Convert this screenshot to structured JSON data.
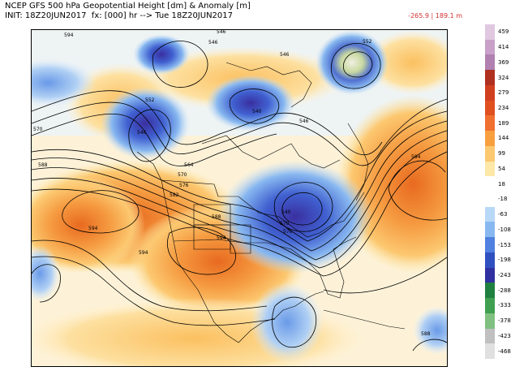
{
  "header": {
    "title": "NCEP GFS 500 hPa Geopotential Height [dm] & Anomaly [m]",
    "init": "INIT: 18Z20JUN2017  fx: [000] hr --> Tue 18Z20JUN2017",
    "readout": "-265.9 | 189.1 m"
  },
  "legend": {
    "labels": [
      "459",
      "414",
      "369",
      "324",
      "279",
      "234",
      "189",
      "144",
      "99",
      "54",
      "18",
      "-18",
      "-63",
      "-108",
      "-153",
      "-198",
      "-243",
      "-288",
      "-333",
      "-378",
      "-423",
      "-468"
    ],
    "colors": [
      "#e0c8e0",
      "#c8a0c8",
      "#b080b0",
      "#b03020",
      "#d04020",
      "#e05020",
      "#f07030",
      "#f8a040",
      "#fcc870",
      "#fde8a8",
      "#ffffff",
      "#ffffff",
      "#b8d8f8",
      "#88b8f0",
      "#5080e0",
      "#3050c0",
      "#3030a0",
      "#208040",
      "#40a050",
      "#80c080",
      "#c0c0c0",
      "#e0e0e0"
    ]
  },
  "map": {
    "contour_labels": [
      "546",
      "546",
      "552",
      "546",
      "570",
      "588",
      "564",
      "570",
      "576",
      "582",
      "588",
      "594",
      "594",
      "594",
      "546",
      "552",
      "540",
      "546",
      "540",
      "570",
      "576",
      "594",
      "588",
      "594"
    ]
  }
}
